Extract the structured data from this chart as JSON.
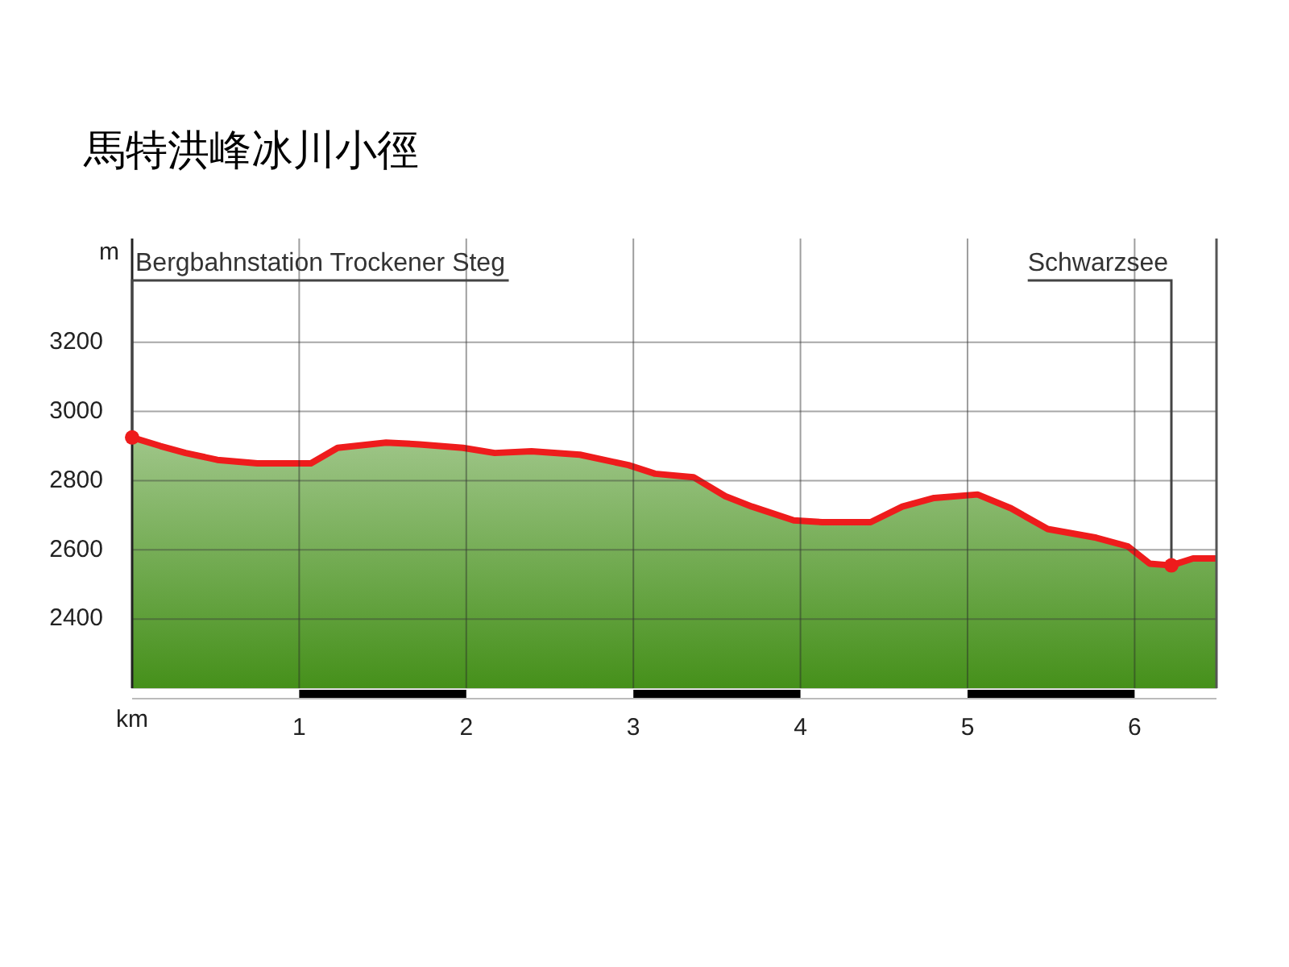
{
  "chart_data": {
    "type": "area",
    "title": "馬特洪峰冰川小徑",
    "xlabel": "km",
    "ylabel": "m",
    "x": [
      0,
      0.17,
      0.32,
      0.51,
      0.75,
      1.07,
      1.23,
      1.52,
      1.72,
      1.98,
      2.17,
      2.39,
      2.68,
      2.97,
      3.13,
      3.36,
      3.55,
      3.71,
      3.96,
      4.13,
      4.42,
      4.61,
      4.8,
      5.06,
      5.26,
      5.48,
      5.77,
      5.96,
      6.09,
      6.22,
      6.35,
      6.49
    ],
    "series": [
      {
        "color": "#ee1c1c",
        "values": [
          2925,
          2900,
          2880,
          2860,
          2850,
          2850,
          2895,
          2910,
          2905,
          2895,
          2880,
          2885,
          2875,
          2845,
          2820,
          2810,
          2755,
          2725,
          2685,
          2680,
          2680,
          2725,
          2750,
          2760,
          2720,
          2660,
          2635,
          2610,
          2560,
          2555,
          2575,
          2575
        ]
      }
    ],
    "xlim": [
      0,
      6.49
    ],
    "xticks": [
      1,
      2,
      3,
      4,
      5,
      6
    ],
    "ylim": [
      2200,
      3500
    ],
    "yticks": [
      2400,
      2600,
      2800,
      3000,
      3200
    ],
    "grid": true,
    "legend": false,
    "annotations": [
      {
        "text": "Bergbahnstation Trockener Steg",
        "x": 0,
        "y": 2925
      },
      {
        "text": "Schwarzsee",
        "x": 6.22,
        "y": 2555
      }
    ]
  }
}
